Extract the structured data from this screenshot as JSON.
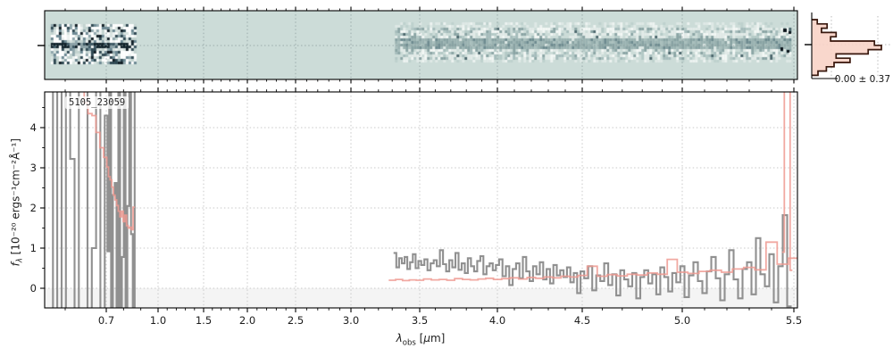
{
  "annotation": "5105_23059",
  "histogram": {
    "stat_label": "0.00 ± 0.37",
    "mean": 0.0,
    "sigma": 0.37,
    "bin_fractions_top_to_bottom": [
      0.08,
      0.22,
      0.14,
      0.35,
      0.27,
      0.9,
      1.0,
      0.81,
      0.35,
      0.55,
      0.32,
      0.21,
      0.09
    ]
  },
  "axes": {
    "x": {
      "label_lambda": "λ",
      "label_sub": "obs",
      "label_open": " [",
      "label_mu": "μ",
      "label_close": "m]",
      "tick_labels": [
        "0.7",
        "1.0",
        "1.5",
        "2.0",
        "2.5",
        "3.0",
        "3.5",
        "4.0",
        "4.5",
        "5.0",
        "5.5"
      ],
      "tick_values": [
        0.7,
        1.0,
        1.5,
        2.0,
        2.5,
        3.0,
        3.5,
        4.0,
        4.5,
        5.0,
        5.5
      ]
    },
    "y": {
      "label_f": "f",
      "label_sub": "λ",
      "label_unit": " [10⁻²⁰ ergs⁻¹cm⁻²Å⁻¹]",
      "tick_labels": [
        "0",
        "1",
        "2",
        "3",
        "4"
      ],
      "tick_values": [
        0,
        1,
        2,
        3,
        4
      ]
    }
  },
  "colors": {
    "background_2d": "#ccdcd8",
    "spectrum_gray": "#8a8a8a",
    "model_salmon": "#ef9a92",
    "hist_outline": "#38190f",
    "hist_fill": "#f8d3c6",
    "hist_fill_edge": "#ee9a86",
    "shade_below_zero": "#f4f4f4",
    "grid": "#c9c9c9",
    "grid_2d": "#8fa0a0",
    "spine": "#000000"
  },
  "chart_data": {
    "type": "line",
    "title": "5105_23059",
    "xlabel": "lambda_obs [micron]",
    "ylabel": "f_lambda [1e-20 ergs-1 cm-2 A-1]",
    "xlim": [
      0.55,
      5.52
    ],
    "ylim": [
      -0.49,
      4.89
    ],
    "grid": "dotted",
    "x_scale_anchors": [
      [
        0.55,
        50
      ],
      [
        0.7,
        119
      ],
      [
        1.0,
        177
      ],
      [
        1.5,
        228
      ],
      [
        2.0,
        277
      ],
      [
        2.5,
        331
      ],
      [
        3.0,
        393
      ],
      [
        3.5,
        470
      ],
      [
        4.0,
        557
      ],
      [
        4.5,
        652
      ],
      [
        5.0,
        764
      ],
      [
        5.5,
        889
      ]
    ],
    "series": [
      {
        "name": "spectrum-blue-segment",
        "role": "data",
        "color": "#8a8a8a",
        "x_start": 0.565,
        "x_step": 0.0105,
        "y": [
          6,
          -1,
          6,
          -1,
          6,
          3.22,
          -1,
          6,
          6,
          -1,
          1.0,
          6,
          -1,
          4.3,
          0.92,
          6,
          -1,
          2.32,
          2.62,
          -1,
          6,
          -1,
          0.78,
          6,
          -1,
          2.05,
          6,
          1.35,
          -1,
          6
        ]
      },
      {
        "name": "model-blue-segment",
        "role": "model",
        "color": "#ef9a92",
        "x_start": 0.632,
        "x_step": 0.0095,
        "y": [
          6.2,
          5.1,
          4.62,
          4.35,
          4.3,
          3.88,
          3.5,
          3.26,
          3.02,
          2.78,
          2.7,
          2.52,
          2.32,
          2.2,
          2.06,
          1.92,
          1.78,
          1.92,
          1.66,
          1.82,
          1.56,
          1.5,
          1.52,
          1.46,
          2.02
        ]
      },
      {
        "name": "spectrum-red-segment",
        "role": "data",
        "color": "#8a8a8a",
        "x_start": 3.32,
        "x_step": 0.02,
        "y": [
          0.88,
          0.52,
          0.75,
          0.62,
          0.78,
          0.48,
          0.65,
          0.85,
          0.5,
          0.68,
          0.58,
          0.72,
          0.45,
          0.62,
          0.7,
          0.55,
          0.95,
          0.6,
          0.42,
          0.7,
          0.52,
          0.88,
          0.46,
          0.62,
          0.38,
          0.75,
          0.55,
          0.42,
          0.68,
          0.8,
          0.35,
          0.55,
          0.62,
          0.45,
          0.58,
          0.72,
          0.3,
          0.55,
          0.08,
          0.48,
          0.62,
          0.25,
          0.78,
          0.42,
          0.18,
          0.55,
          0.35,
          0.65,
          0.22,
          0.48,
          0.12,
          0.58,
          0.32,
          0.45,
          0.28,
          0.52,
          0.15,
          0.38,
          -0.12,
          0.42,
          0.25,
          0.55,
          -0.05,
          0.32,
          0.18,
          0.62,
          0.08,
          0.35,
          -0.18,
          0.45,
          0.22,
          0.05,
          0.38,
          -0.25,
          0.28,
          0.45,
          0.12,
          0.35,
          -0.15,
          0.52,
          0.28,
          -0.08,
          0.38,
          0.15,
          0.55,
          -0.22,
          0.32,
          0.65,
          0.18,
          -0.12,
          0.42,
          0.78,
          0.25,
          -0.3,
          0.35,
          0.95,
          0.22,
          -0.25,
          0.48,
          0.65,
          -0.15,
          1.25,
          0.35,
          0.05,
          0.85,
          -0.35,
          0.55,
          1.82,
          -0.45
        ]
      },
      {
        "name": "model-red-segment",
        "role": "model",
        "color": "#ef9a92",
        "x_start": 3.3,
        "x_step": 0.05,
        "y": [
          0.2,
          0.22,
          0.19,
          0.21,
          0.2,
          0.23,
          0.21,
          0.22,
          0.2,
          0.24,
          0.22,
          0.21,
          0.23,
          0.25,
          0.22,
          0.24,
          0.26,
          0.23,
          0.27,
          0.25,
          0.28,
          0.26,
          0.3,
          0.28,
          0.32,
          0.55,
          0.3,
          0.34,
          0.31,
          0.35,
          0.33,
          0.38,
          0.35,
          0.72,
          0.4,
          0.37,
          0.42,
          0.45,
          0.4,
          0.48,
          0.52,
          0.46,
          1.15,
          0.6,
          0.75
        ]
      },
      {
        "name": "model-edge-spike",
        "role": "model",
        "color": "#ef9a92",
        "x": [
          5.452,
          5.462,
          5.478,
          5.488
        ],
        "y": [
          0.9,
          6.5,
          6.5,
          0.45
        ]
      }
    ],
    "spectrum_2d_regions": [
      {
        "name": "blue-order-noise-block",
        "lambda": [
          0.565,
          0.87
        ]
      },
      {
        "name": "red-order-trace-band",
        "lambda": [
          3.32,
          5.48
        ]
      }
    ]
  }
}
